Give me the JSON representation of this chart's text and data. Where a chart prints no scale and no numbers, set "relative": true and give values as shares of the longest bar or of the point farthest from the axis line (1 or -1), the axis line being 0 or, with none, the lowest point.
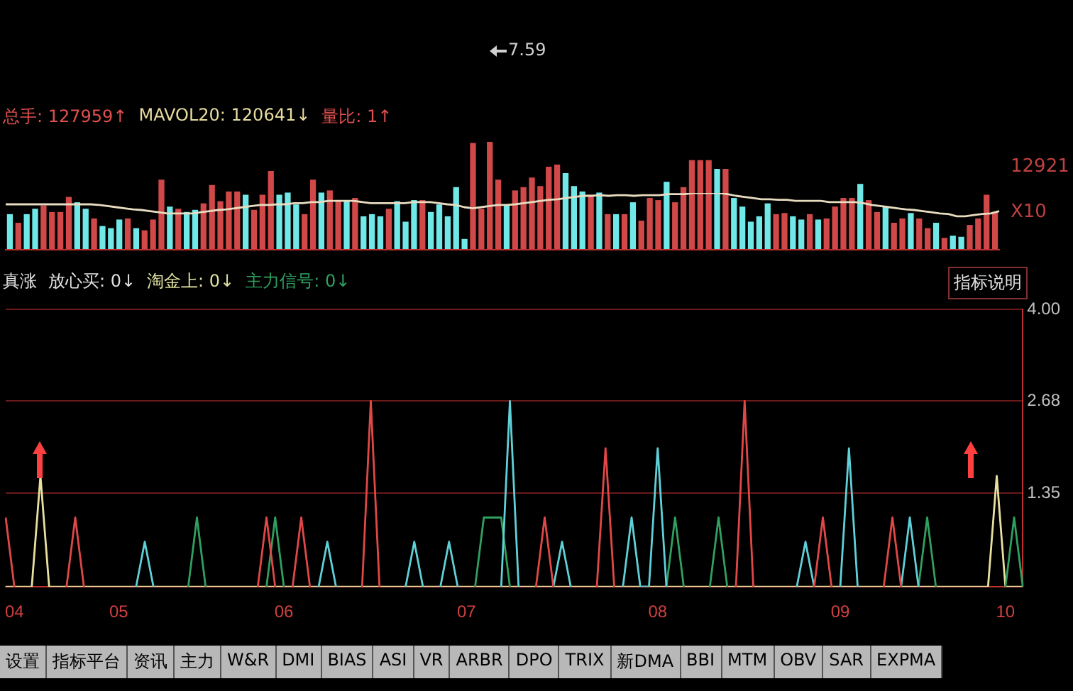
{
  "chart_data": [
    {
      "type": "bar",
      "relative": true,
      "tick_labels": false,
      "categories": [
        null,
        null,
        null,
        null,
        null,
        null,
        null,
        null,
        null,
        null,
        null,
        null,
        null,
        null,
        null,
        null,
        null,
        null,
        null,
        null,
        null,
        null,
        null,
        null,
        null,
        null,
        null,
        null,
        null,
        null,
        null,
        null,
        null,
        null,
        null,
        null,
        null,
        null,
        null,
        null,
        null,
        null,
        null,
        null,
        null,
        null,
        null,
        null,
        null,
        null,
        null,
        null,
        null,
        null,
        null,
        null,
        null,
        null,
        null,
        null,
        null,
        null,
        null,
        null,
        null,
        null,
        null,
        null,
        null,
        null,
        null,
        null,
        null,
        null,
        null,
        null,
        null,
        null,
        null,
        null,
        null,
        null,
        null,
        null,
        null,
        null,
        null,
        null,
        null,
        null,
        null,
        null,
        null,
        null,
        null,
        null,
        null,
        null,
        null,
        null,
        null,
        null,
        null,
        null,
        null,
        null,
        null,
        null,
        null,
        null,
        null,
        null,
        null,
        null,
        null,
        null,
        null,
        null
      ],
      "colors": [
        "#70e8e8",
        "#d04848",
        "#70e8e8",
        "#70e8e8",
        "#d04848",
        "#d04848",
        "#d04848",
        "#d04848",
        "#70e8e8",
        "#70e8e8",
        "#d04848",
        "#70e8e8",
        "#70e8e8",
        "#70e8e8",
        "#d04848",
        "#70e8e8",
        "#d04848",
        "#d04848",
        "#d04848",
        "#70e8e8",
        "#d04848",
        "#70e8e8",
        "#70e8e8",
        "#d04848",
        "#d04848",
        "#d04848",
        "#d04848",
        "#d04848",
        "#70e8e8",
        "#d04848",
        "#d04848",
        "#d04848",
        "#70e8e8",
        "#70e8e8",
        "#70e8e8",
        "#d04848",
        "#d04848",
        "#70e8e8",
        "#d04848",
        "#d04848",
        "#70e8e8",
        "#d04848",
        "#70e8e8",
        "#70e8e8",
        "#70e8e8",
        "#d04848",
        "#70e8e8",
        "#70e8e8",
        "#70e8e8",
        "#d04848",
        "#70e8e8",
        "#70e8e8",
        "#70e8e8",
        "#70e8e8",
        "#70e8e8",
        "#d04848",
        "#d04848",
        "#d04848",
        "#d04848",
        "#70e8e8",
        "#d04848",
        "#d04848",
        "#d04848",
        "#d04848",
        "#d04848",
        "#d04848",
        "#70e8e8",
        "#70e8e8",
        "#70e8e8",
        "#d04848",
        "#70e8e8",
        "#d04848",
        "#70e8e8",
        "#d04848",
        "#70e8e8",
        "#d04848",
        "#d04848",
        "#d04848",
        "#70e8e8",
        "#d04848",
        "#d04848",
        "#d04848",
        "#d04848",
        "#d04848",
        "#70e8e8",
        "#d04848",
        "#70e8e8",
        "#70e8e8",
        "#70e8e8",
        "#70e8e8",
        "#70e8e8",
        "#d04848",
        "#d04848",
        "#70e8e8",
        "#70e8e8",
        "#d04848",
        "#70e8e8",
        "#d04848",
        "#d04848",
        "#d04848",
        "#d04848",
        "#70e8e8",
        "#d04848",
        "#d04848",
        "#70e8e8",
        "#d04848",
        "#d04848",
        "#70e8e8",
        "#d04848",
        "#d04848",
        "#70e8e8",
        "#d04848",
        "#70e8e8",
        "#70e8e8",
        "#d04848",
        "#d04848",
        "#d04848",
        "#d04848"
      ],
      "values": [
        0.33,
        0.25,
        0.33,
        0.38,
        0.41,
        0.35,
        0.35,
        0.49,
        0.44,
        0.38,
        0.29,
        0.22,
        0.2,
        0.28,
        0.29,
        0.2,
        0.18,
        0.28,
        0.65,
        0.4,
        0.38,
        0.35,
        0.37,
        0.43,
        0.6,
        0.45,
        0.54,
        0.54,
        0.51,
        0.37,
        0.51,
        0.73,
        0.51,
        0.53,
        0.42,
        0.33,
        0.65,
        0.53,
        0.55,
        0.46,
        0.46,
        0.48,
        0.31,
        0.33,
        0.31,
        0.38,
        0.45,
        0.26,
        0.46,
        0.46,
        0.35,
        0.42,
        0.31,
        0.58,
        0.1,
        0.99,
        0.38,
        1,
        0.65,
        0.42,
        0.55,
        0.58,
        0.67,
        0.59,
        0.77,
        0.79,
        0.71,
        0.59,
        0.54,
        0.51,
        0.53,
        0.33,
        0.33,
        0.33,
        0.44,
        0.27,
        0.48,
        0.46,
        0.63,
        0.44,
        0.58,
        0.83,
        0.83,
        0.83,
        0.75,
        0.75,
        0.48,
        0.4,
        0.26,
        0.31,
        0.43,
        0.33,
        0.34,
        0.31,
        0.28,
        0.33,
        0.28,
        0.29,
        0.4,
        0.48,
        0.48,
        0.61,
        0.46,
        0.35,
        0.4,
        0.25,
        0.29,
        0.34,
        0.29,
        0.2,
        0.25,
        0.11,
        0.13,
        0.12,
        0.23,
        0.29,
        0.51,
        0.35
      ],
      "annotations": [
        "7.59",
        "总手: 127959↑",
        "MAVOL20: 120641↓",
        "量比: 1↑",
        "12921",
        "X10"
      ]
    },
    {
      "type": "line",
      "relative": true,
      "tick_labels": false,
      "marker": "none",
      "categories": [
        null,
        null,
        null,
        null,
        null,
        null,
        null,
        null,
        null,
        null,
        null,
        null,
        null,
        null,
        null,
        null,
        null,
        null,
        null,
        null,
        null,
        null,
        null,
        null,
        null,
        null,
        null,
        null,
        null,
        null,
        null,
        null,
        null,
        null,
        null,
        null,
        null,
        null,
        null,
        null,
        null,
        null,
        null,
        null,
        null,
        null,
        null,
        null,
        null,
        null,
        null,
        null,
        null,
        null,
        null,
        null,
        null,
        null,
        null,
        null,
        null,
        null,
        null,
        null,
        null,
        null,
        null,
        null,
        null,
        null,
        null,
        null,
        null,
        null,
        null,
        null,
        null,
        null,
        null,
        null,
        null,
        null,
        null,
        null,
        null,
        null,
        null,
        null,
        null,
        null,
        null,
        null,
        null,
        null,
        null,
        null,
        null,
        null,
        null,
        null,
        null,
        null,
        null,
        null,
        null,
        null,
        null,
        null,
        null,
        null,
        null,
        null,
        null,
        null,
        null,
        null,
        null,
        null
      ],
      "color": "#e8dcc0",
      "values": [
        0.8,
        0.8,
        0.8,
        0.8,
        0.8,
        0.8,
        0.8,
        0.8,
        0.8,
        0.8,
        0.8,
        0.79,
        0.77,
        0.75,
        0.73,
        0.71,
        0.7,
        0.68,
        0.66,
        0.64,
        0.64,
        0.64,
        0.64,
        0.66,
        0.68,
        0.7,
        0.71,
        0.73,
        0.75,
        0.77,
        0.79,
        0.79,
        0.8,
        0.8,
        0.82,
        0.82,
        0.84,
        0.84,
        0.86,
        0.86,
        0.86,
        0.86,
        0.84,
        0.82,
        0.82,
        0.82,
        0.82,
        0.82,
        0.84,
        0.84,
        0.84,
        0.82,
        0.8,
        0.79,
        0.75,
        0.73,
        0.75,
        0.77,
        0.79,
        0.79,
        0.8,
        0.82,
        0.84,
        0.86,
        0.88,
        0.89,
        0.91,
        0.93,
        0.95,
        0.95,
        0.96,
        0.95,
        0.96,
        0.96,
        0.95,
        0.96,
        0.96,
        0.96,
        0.98,
        0.98,
        0.98,
        1,
        1,
        1,
        1,
        0.98,
        0.95,
        0.93,
        0.91,
        0.89,
        0.89,
        0.88,
        0.88,
        0.86,
        0.86,
        0.86,
        0.86,
        0.84,
        0.84,
        0.84,
        0.84,
        0.82,
        0.79,
        0.77,
        0.75,
        0.73,
        0.71,
        0.7,
        0.68,
        0.66,
        0.64,
        0.63,
        0.59,
        0.59,
        0.61,
        0.63,
        0.64,
        0.68
      ]
    },
    {
      "type": "line",
      "grid": "y",
      "marker": "none",
      "ylim": [
        0,
        4
      ],
      "yticks": [
        1.35,
        2.68,
        {
          "value": 4,
          "label": "4.00"
        }
      ],
      "categories": [
        null,
        "04",
        null,
        null,
        null,
        null,
        null,
        null,
        null,
        null,
        null,
        null,
        null,
        "05",
        null,
        null,
        null,
        null,
        null,
        null,
        null,
        null,
        null,
        null,
        null,
        null,
        null,
        null,
        null,
        null,
        null,
        null,
        "06",
        null,
        null,
        null,
        null,
        null,
        null,
        null,
        null,
        null,
        null,
        null,
        null,
        null,
        null,
        null,
        null,
        null,
        null,
        null,
        null,
        "07",
        null,
        null,
        null,
        null,
        null,
        null,
        null,
        null,
        null,
        null,
        null,
        null,
        null,
        null,
        null,
        null,
        null,
        null,
        null,
        null,
        null,
        "08",
        null,
        null,
        null,
        null,
        null,
        null,
        null,
        null,
        null,
        null,
        null,
        null,
        null,
        null,
        null,
        null,
        null,
        null,
        null,
        null,
        "09",
        null,
        null,
        null,
        null,
        null,
        null,
        null,
        null,
        null,
        null,
        null,
        null,
        null,
        null,
        null,
        null,
        null,
        null,
        "10",
        null,
        null
      ],
      "series": [
        {
          "color": "#e04848",
          "values": [
            1,
            0,
            null,
            null,
            null,
            null,
            null,
            0,
            1,
            0,
            null,
            null,
            null,
            null,
            null,
            null,
            null,
            null,
            null,
            null,
            null,
            null,
            null,
            null,
            null,
            null,
            null,
            null,
            null,
            0,
            1,
            0,
            null,
            0,
            1,
            0,
            null,
            null,
            null,
            null,
            null,
            0,
            2.68,
            0,
            null,
            null,
            null,
            null,
            null,
            null,
            null,
            null,
            null,
            null,
            null,
            null,
            null,
            null,
            null,
            null,
            null,
            0,
            1,
            0,
            null,
            null,
            null,
            null,
            0,
            2,
            0,
            null,
            null,
            null,
            null,
            null,
            null,
            null,
            null,
            null,
            null,
            null,
            null,
            null,
            0,
            2.68,
            0,
            null,
            null,
            null,
            null,
            null,
            null,
            0,
            1,
            0,
            null,
            null,
            null,
            null,
            null,
            0,
            1,
            0,
            null,
            null,
            null,
            null,
            null,
            null,
            null,
            null,
            null,
            null,
            null,
            null,
            null,
            null
          ]
        },
        {
          "color": "#60d0d8",
          "values": [
            null,
            null,
            null,
            null,
            null,
            null,
            null,
            null,
            null,
            null,
            null,
            null,
            null,
            null,
            null,
            0,
            0.65,
            0,
            null,
            null,
            null,
            null,
            null,
            null,
            null,
            null,
            null,
            null,
            null,
            null,
            null,
            null,
            null,
            null,
            null,
            null,
            0,
            0.65,
            0,
            null,
            null,
            null,
            null,
            null,
            null,
            null,
            0,
            0.65,
            0,
            null,
            0,
            0.65,
            0,
            null,
            null,
            null,
            null,
            0,
            2.68,
            0,
            null,
            null,
            null,
            0,
            0.65,
            0,
            null,
            null,
            null,
            null,
            null,
            0,
            1,
            0,
            0,
            2,
            0,
            null,
            null,
            null,
            null,
            null,
            null,
            null,
            null,
            null,
            null,
            null,
            null,
            null,
            null,
            0,
            0.65,
            0,
            null,
            null,
            0,
            2,
            0,
            null,
            null,
            null,
            null,
            0,
            1,
            0,
            null,
            null,
            null,
            null,
            null,
            null,
            null,
            null,
            null,
            null,
            null,
            null
          ]
        },
        {
          "color": "#30a060",
          "values": [
            null,
            null,
            null,
            null,
            null,
            null,
            null,
            null,
            null,
            null,
            null,
            null,
            null,
            null,
            null,
            null,
            null,
            null,
            null,
            null,
            null,
            0,
            1,
            0,
            null,
            null,
            null,
            null,
            null,
            null,
            0,
            1,
            0,
            null,
            null,
            null,
            null,
            null,
            null,
            null,
            null,
            null,
            null,
            null,
            null,
            null,
            null,
            null,
            null,
            null,
            null,
            null,
            null,
            null,
            0,
            1,
            1,
            1,
            0,
            null,
            null,
            null,
            null,
            null,
            null,
            null,
            null,
            null,
            null,
            null,
            null,
            null,
            null,
            null,
            null,
            null,
            0,
            1,
            0,
            null,
            null,
            0,
            1,
            0,
            null,
            null,
            null,
            null,
            null,
            null,
            null,
            null,
            null,
            null,
            null,
            null,
            null,
            null,
            null,
            null,
            null,
            null,
            null,
            null,
            null,
            0,
            1,
            0,
            null,
            null,
            null,
            null,
            null,
            null,
            null,
            0,
            1,
            0
          ]
        },
        {
          "color": "#e8e0a0",
          "values": [
            0,
            0,
            0,
            0,
            1.6,
            0,
            0,
            0,
            0,
            0,
            0,
            0,
            0,
            0,
            0,
            0,
            0,
            0,
            0,
            0,
            0,
            0,
            0,
            0,
            0,
            0,
            0,
            0,
            0,
            0,
            0,
            0,
            0,
            0,
            0,
            0,
            0,
            0,
            0,
            0,
            0,
            0,
            0,
            0,
            0,
            0,
            0,
            0,
            0,
            0,
            0,
            0,
            0,
            0,
            0,
            0,
            0,
            0,
            0,
            0,
            0,
            0,
            0,
            0,
            0,
            0,
            0,
            0,
            0,
            0,
            0,
            0,
            0,
            0,
            0,
            0,
            0,
            0,
            0,
            0,
            0,
            0,
            0,
            0,
            0,
            0,
            0,
            0,
            0,
            0,
            0,
            0,
            0,
            0,
            0,
            0,
            0,
            0,
            0,
            0,
            0,
            0,
            0,
            0,
            0,
            0,
            0,
            0,
            0,
            0,
            0,
            0,
            0,
            0,
            1.6,
            0,
            0,
            0
          ]
        }
      ],
      "annotations": [
        "真涨",
        "放心买: 0↓",
        "淘金上: 0↓",
        "主力信号: 0↓",
        "指标说明"
      ]
    },
    {
      "type": "other",
      "annotations": [
        "设置",
        "指标平台",
        "资讯",
        "主力",
        "W&R",
        "DMI",
        "BIAS",
        "ASI",
        "VR",
        "ARBR",
        "DPO",
        "TRIX",
        "新DMA",
        "BBI",
        "MTM",
        "OBV",
        "SAR",
        "EXPMA"
      ]
    }
  ]
}
